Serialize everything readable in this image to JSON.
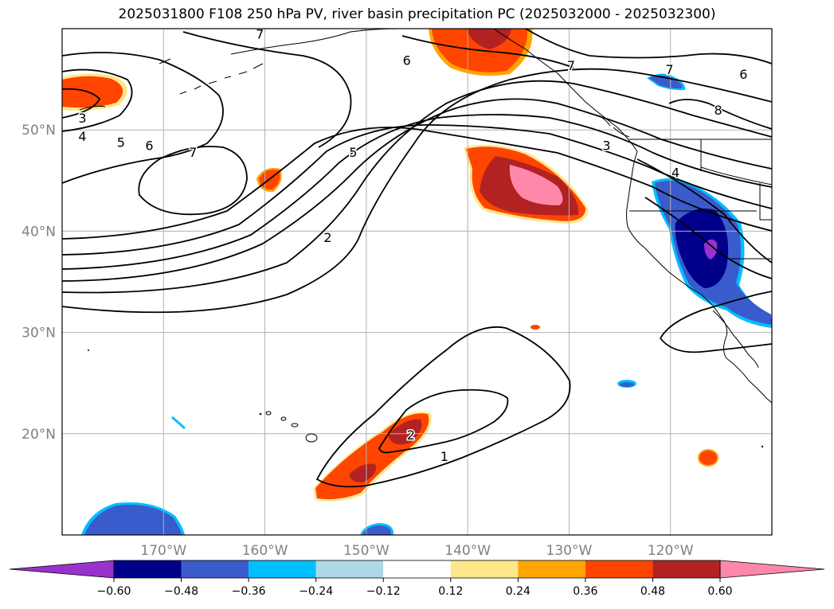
{
  "title": "2025031800 F108 250 hPa PV, river basin precipitation PC (2025032000 - 2025032300)",
  "map": {
    "lon_range": [
      -180,
      -110
    ],
    "lat_range": [
      10,
      60
    ],
    "lon_ticks": [
      {
        "lon": -170,
        "label": "170°W"
      },
      {
        "lon": -160,
        "label": "160°W"
      },
      {
        "lon": -150,
        "label": "150°W"
      },
      {
        "lon": -140,
        "label": "140°W"
      },
      {
        "lon": -130,
        "label": "130°W"
      },
      {
        "lon": -120,
        "label": "120°W"
      }
    ],
    "lat_ticks": [
      {
        "lat": 20,
        "label": "20°N"
      },
      {
        "lat": 30,
        "label": "30°N"
      },
      {
        "lat": 40,
        "label": "40°N"
      },
      {
        "lat": 50,
        "label": "50°N"
      }
    ],
    "grid": true,
    "tick_label_color": "#808080",
    "pv_contour_labels": [
      {
        "text": "7",
        "lon": -160.5,
        "lat": 59.5
      },
      {
        "text": "6",
        "lon": -146.0,
        "lat": 56.9
      },
      {
        "text": "7",
        "lon": -129.8,
        "lat": 56.4
      },
      {
        "text": "7",
        "lon": -120.1,
        "lat": 56.0
      },
      {
        "text": "6",
        "lon": -112.8,
        "lat": 55.5
      },
      {
        "text": "8",
        "lon": -115.3,
        "lat": 52.0
      },
      {
        "text": "3",
        "lon": -178.0,
        "lat": 51.2
      },
      {
        "text": "4",
        "lon": -178.0,
        "lat": 49.4
      },
      {
        "text": "5",
        "lon": -174.2,
        "lat": 48.8
      },
      {
        "text": "6",
        "lon": -171.4,
        "lat": 48.5
      },
      {
        "text": "7",
        "lon": -167.1,
        "lat": 47.8
      },
      {
        "text": "5",
        "lon": -151.3,
        "lat": 47.8
      },
      {
        "text": "3",
        "lon": -126.3,
        "lat": 48.5
      },
      {
        "text": "4",
        "lon": -119.5,
        "lat": 45.8
      },
      {
        "text": "2",
        "lon": -153.8,
        "lat": 39.4
      },
      {
        "text": "2",
        "lon": -145.6,
        "lat": 19.9
      },
      {
        "text": "1",
        "lon": -142.3,
        "lat": 17.8
      }
    ],
    "precip_pc_colors": {
      "below_-0.60": "#9932cc",
      "-0.60_-0.48": "#00008b",
      "-0.48_-0.36": "#3a5bcc",
      "-0.36_-0.24": "#00bfff",
      "0.24_0.36": "#ffa500",
      "0.36_0.48": "#ff4500",
      "0.48_0.60": "#b22222",
      "above_0.60": "#ff88aa"
    }
  },
  "colorbar": {
    "levels": [
      -0.72,
      -0.6,
      -0.48,
      -0.36,
      -0.24,
      -0.12,
      0.12,
      0.24,
      0.36,
      0.48,
      0.6,
      0.72
    ],
    "tick_values": [
      -0.6,
      -0.48,
      -0.36,
      -0.24,
      -0.12,
      0.12,
      0.24,
      0.36,
      0.48,
      0.6
    ],
    "tick_labels": [
      "−0.60",
      "−0.48",
      "−0.36",
      "−0.24",
      "−0.12",
      "0.12",
      "0.24",
      "0.36",
      "0.48",
      "0.60"
    ],
    "colors": [
      "#9932cc",
      "#00008b",
      "#3a5bcc",
      "#00bfff",
      "#add8e6",
      "#ffffff",
      "#ffe88a",
      "#ffa500",
      "#ff4500",
      "#b22222",
      "#ff88aa"
    ],
    "extend": "both"
  }
}
